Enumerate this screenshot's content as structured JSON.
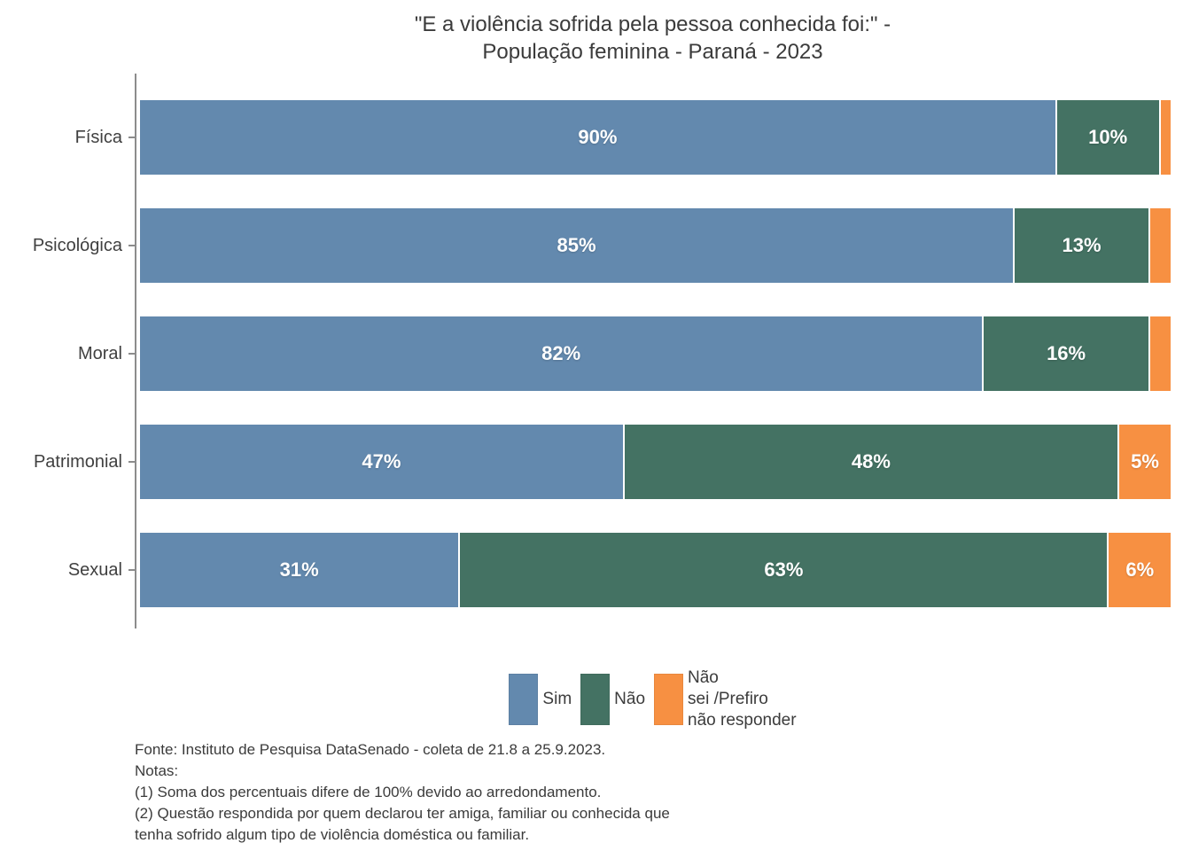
{
  "title": {
    "line1": "\"E a violência sofrida pela pessoa conhecida foi:\" -",
    "line2": "População feminina - Paraná - 2023"
  },
  "chart_data": {
    "type": "bar",
    "orientation": "horizontal",
    "stacked": true,
    "unit": "%",
    "title": "\"E a violência sofrida pela pessoa conhecida foi:\" - População feminina - Paraná - 2023",
    "categories": [
      "Física",
      "Psicológica",
      "Moral",
      "Patrimonial",
      "Sexual"
    ],
    "series": [
      {
        "name": "Sim",
        "color": "#6389AE",
        "values": [
          90,
          85,
          82,
          47,
          31
        ]
      },
      {
        "name": "Não",
        "color": "#447263",
        "values": [
          10,
          13,
          16,
          48,
          63
        ]
      },
      {
        "name": "Não sei /Prefiro não responder",
        "color": "#F79042",
        "values": [
          1,
          2,
          2,
          5,
          6
        ]
      }
    ],
    "data_label_format": "value%",
    "data_label_min_value_shown": 5,
    "legend_position": "bottom",
    "axis_color": "#8C8C8C",
    "grid": false
  },
  "legend": {
    "items": [
      {
        "label": "Sim",
        "color": "#6389AE"
      },
      {
        "label": "Não",
        "color": "#447263"
      },
      {
        "label": "Não\nsei /Prefiro\nnão responder",
        "color": "#F79042"
      }
    ]
  },
  "footer": {
    "source": "Fonte: Instituto de Pesquisa DataSenado - coleta de 21.8 a 25.9.2023.",
    "notes_heading": "Notas:",
    "note1": "(1) Soma dos percentuais difere de 100% devido ao arredondamento.",
    "note2_line1": "(2) Questão respondida por quem declarou ter amiga, familiar ou conhecida que",
    "note2_line2": "tenha sofrido algum tipo de violência doméstica ou familiar."
  }
}
